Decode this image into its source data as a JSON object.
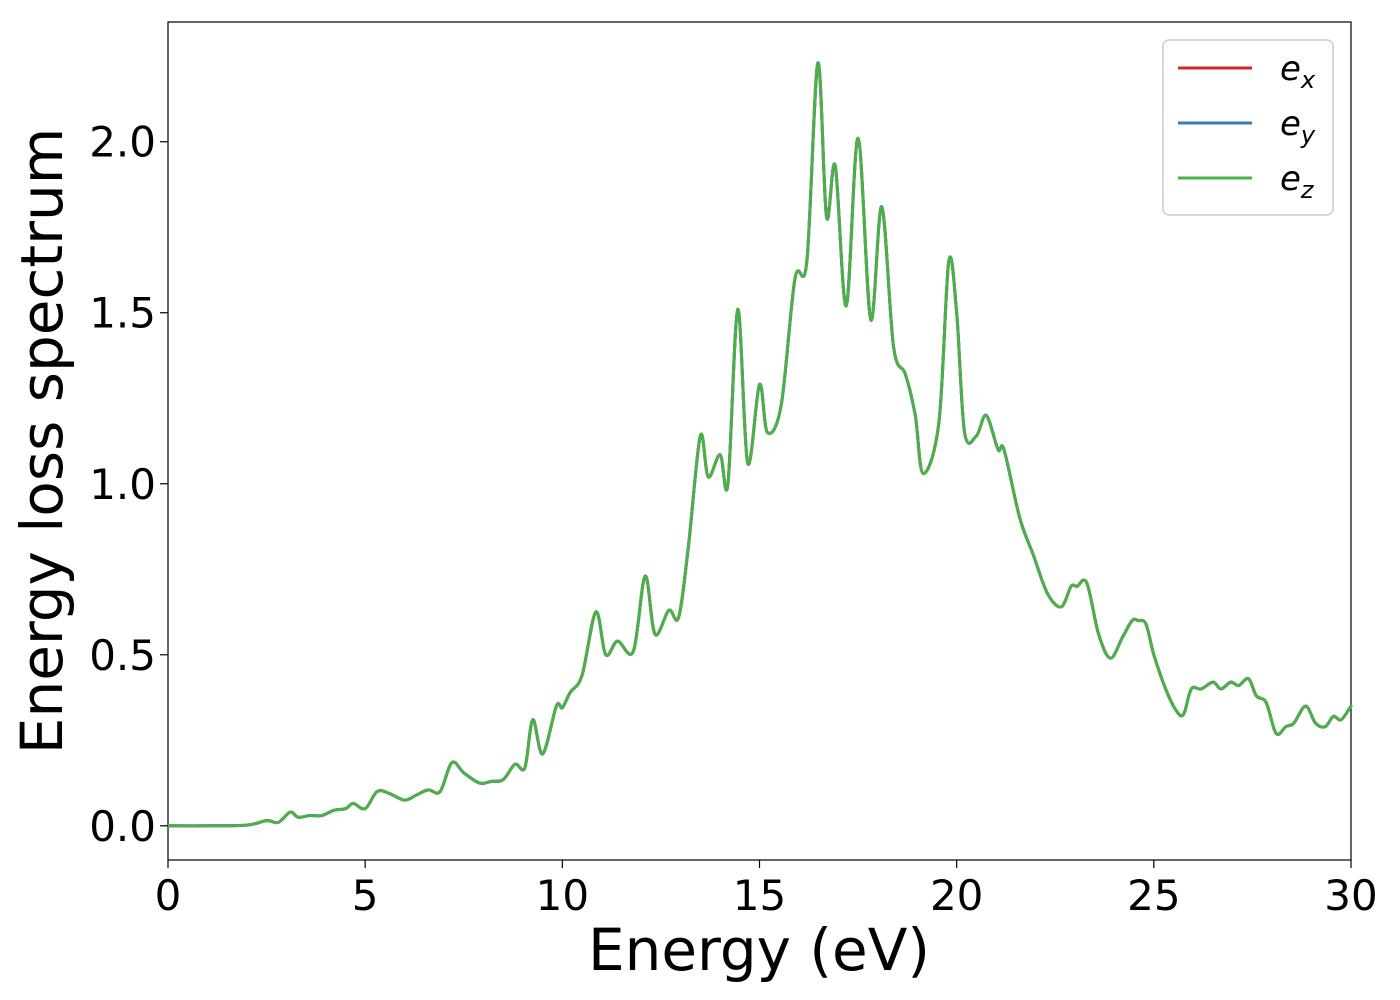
{
  "chart_data": {
    "type": "line",
    "title": "",
    "xlabel": "Energy (eV)",
    "ylabel": "Energy loss spectrum",
    "xlim": [
      0,
      30
    ],
    "ylim": [
      -0.1,
      2.35
    ],
    "xticks": [
      0,
      5,
      10,
      15,
      20,
      25,
      30
    ],
    "xtick_labels": [
      "0",
      "5",
      "10",
      "15",
      "20",
      "25",
      "30"
    ],
    "yticks": [
      0.0,
      0.5,
      1.0,
      1.5,
      2.0
    ],
    "ytick_labels": [
      "0.0",
      "0.5",
      "1.0",
      "1.5",
      "2.0"
    ],
    "grid": false,
    "legend_position": "top-right",
    "series": [
      {
        "name": "e_x",
        "legend_base": "e",
        "legend_sub": "x",
        "color": "#d62728",
        "ref": "shared"
      },
      {
        "name": "e_y",
        "legend_base": "e",
        "legend_sub": "y",
        "color": "#377eb8",
        "ref": "shared"
      },
      {
        "name": "e_z",
        "legend_base": "e",
        "legend_sub": "z",
        "color": "#4daf4a",
        "ref": "shared"
      }
    ],
    "shared_values": {
      "x": [
        0,
        1,
        2,
        2.5,
        2.8,
        3.1,
        3.3,
        3.6,
        3.9,
        4.2,
        4.5,
        4.7,
        5.0,
        5.3,
        5.6,
        6.0,
        6.3,
        6.6,
        6.9,
        7.2,
        7.5,
        7.9,
        8.2,
        8.5,
        8.8,
        9.05,
        9.25,
        9.5,
        9.85,
        10.0,
        10.2,
        10.5,
        10.85,
        11.1,
        11.4,
        11.8,
        12.1,
        12.35,
        12.7,
        12.95,
        13.2,
        13.5,
        13.7,
        14.0,
        14.2,
        14.45,
        14.7,
        15.0,
        15.2,
        15.55,
        15.9,
        16.2,
        16.48,
        16.7,
        16.92,
        17.2,
        17.5,
        17.82,
        18.1,
        18.4,
        18.7,
        18.95,
        19.15,
        19.55,
        19.8,
        20.0,
        20.2,
        20.5,
        20.75,
        21.05,
        21.2,
        21.6,
        21.95,
        22.3,
        22.65,
        22.9,
        23.05,
        23.3,
        23.6,
        23.9,
        24.2,
        24.45,
        24.6,
        24.8,
        25.0,
        25.3,
        25.55,
        25.75,
        25.95,
        26.2,
        26.5,
        26.7,
        26.95,
        27.15,
        27.4,
        27.6,
        27.85,
        28.1,
        28.35,
        28.55,
        28.85,
        29.1,
        29.35,
        29.55,
        29.75,
        30.0
      ],
      "y": [
        0.0,
        0.0,
        0.002,
        0.015,
        0.01,
        0.04,
        0.025,
        0.03,
        0.03,
        0.045,
        0.05,
        0.065,
        0.05,
        0.1,
        0.095,
        0.075,
        0.09,
        0.105,
        0.1,
        0.185,
        0.155,
        0.125,
        0.13,
        0.135,
        0.18,
        0.17,
        0.31,
        0.21,
        0.35,
        0.345,
        0.39,
        0.44,
        0.625,
        0.5,
        0.54,
        0.51,
        0.73,
        0.56,
        0.63,
        0.61,
        0.82,
        1.14,
        1.02,
        1.085,
        1.0,
        1.51,
        1.06,
        1.29,
        1.15,
        1.23,
        1.6,
        1.65,
        2.23,
        1.78,
        1.93,
        1.52,
        2.01,
        1.48,
        1.81,
        1.4,
        1.32,
        1.2,
        1.03,
        1.18,
        1.65,
        1.5,
        1.15,
        1.14,
        1.2,
        1.1,
        1.1,
        0.9,
        0.79,
        0.68,
        0.64,
        0.7,
        0.7,
        0.71,
        0.56,
        0.49,
        0.55,
        0.6,
        0.6,
        0.59,
        0.5,
        0.4,
        0.34,
        0.325,
        0.4,
        0.4,
        0.42,
        0.4,
        0.42,
        0.41,
        0.43,
        0.38,
        0.36,
        0.27,
        0.29,
        0.3,
        0.35,
        0.3,
        0.29,
        0.32,
        0.31,
        0.35
      ]
    }
  }
}
